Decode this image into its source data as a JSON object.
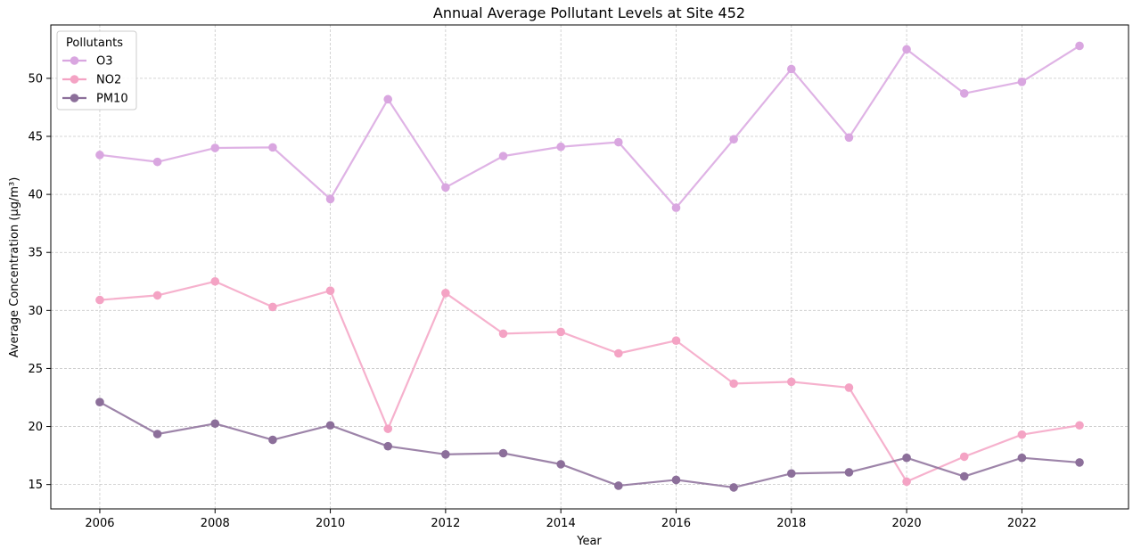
{
  "chart_data": {
    "type": "line",
    "title": "Annual Average Pollutant Levels at Site 452",
    "xlabel": "Year",
    "ylabel": "Average Concentration (µg/m³)",
    "x": [
      2006,
      2007,
      2008,
      2009,
      2010,
      2011,
      2012,
      2013,
      2014,
      2015,
      2016,
      2017,
      2018,
      2019,
      2020,
      2021,
      2022,
      2023
    ],
    "xlim": [
      2005.15,
      2023.85
    ],
    "ylim": [
      12.9,
      54.6
    ],
    "xticks": [
      2006,
      2008,
      2010,
      2012,
      2014,
      2016,
      2018,
      2020,
      2022
    ],
    "yticks": [
      15,
      20,
      25,
      30,
      35,
      40,
      45,
      50
    ],
    "grid": true,
    "legend": {
      "title": "Pollutants",
      "position": "top-left"
    },
    "series": [
      {
        "name": "O3",
        "color": "#d9a6e0",
        "values": [
          43.4,
          42.8,
          44.0,
          44.05,
          39.6,
          48.2,
          40.6,
          43.3,
          44.1,
          44.5,
          38.85,
          44.75,
          50.8,
          44.9,
          52.5,
          48.7,
          49.7,
          52.8
        ]
      },
      {
        "name": "NO2",
        "color": "#f4a3c4",
        "values": [
          30.9,
          31.3,
          32.5,
          30.3,
          31.7,
          19.8,
          31.5,
          28.0,
          28.15,
          26.3,
          27.4,
          23.7,
          23.85,
          23.35,
          15.25,
          17.4,
          19.3,
          20.1
        ]
      },
      {
        "name": "PM10",
        "color": "#8c6f9a",
        "values": [
          22.1,
          19.35,
          20.25,
          18.85,
          20.1,
          18.3,
          17.6,
          17.7,
          16.75,
          14.9,
          15.4,
          14.75,
          15.95,
          16.05,
          17.3,
          15.7,
          17.3,
          16.9
        ]
      }
    ]
  }
}
